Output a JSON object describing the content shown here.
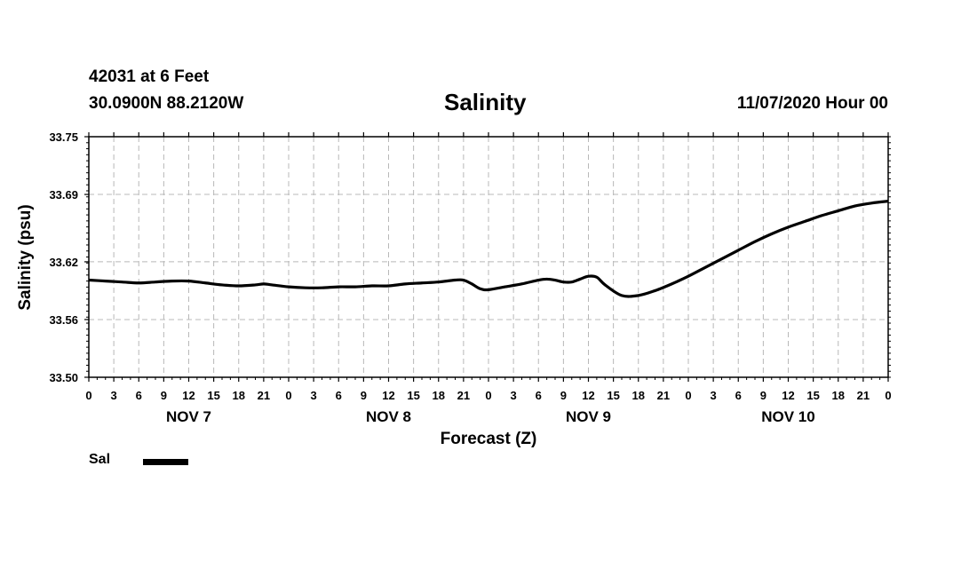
{
  "header": {
    "station": "42031 at 6 Feet",
    "coords": "30.0900N 88.2120W",
    "title": "Salinity",
    "timestamp": "11/07/2020 Hour 00"
  },
  "legend": {
    "label": "Sal",
    "color": "#000000"
  },
  "chart_data": {
    "type": "line",
    "title": "Salinity",
    "xlabel": "Forecast (Z)",
    "ylabel": "Salinity (psu)",
    "ylim": [
      33.5,
      33.75
    ],
    "yticks": [
      "33.50",
      "33.56",
      "33.62",
      "33.69",
      "33.75"
    ],
    "xlim": [
      0,
      96
    ],
    "x_unit": "forecast hour from 11/07/2020 00Z",
    "xtick_labels": [
      "0",
      "3",
      "6",
      "9",
      "12",
      "15",
      "18",
      "21",
      "0",
      "3",
      "6",
      "9",
      "12",
      "15",
      "18",
      "21",
      "0",
      "3",
      "6",
      "9",
      "12",
      "15",
      "18",
      "21",
      "0",
      "3",
      "6",
      "9",
      "12",
      "15",
      "18",
      "21",
      "0"
    ],
    "day_labels": [
      {
        "label": "NOV 7",
        "hour": 12
      },
      {
        "label": "NOV 8",
        "hour": 36
      },
      {
        "label": "NOV 9",
        "hour": 60
      },
      {
        "label": "NOV 10",
        "hour": 84
      }
    ],
    "grid": true,
    "legend_position": "bottom-left",
    "series": [
      {
        "name": "Sal",
        "color": "#000000",
        "x": [
          0,
          2,
          4,
          6,
          8,
          10,
          12,
          14,
          16,
          18,
          20,
          21,
          22,
          24,
          26,
          28,
          30,
          32,
          34,
          36,
          38,
          40,
          42,
          44,
          45,
          46,
          47,
          48,
          50,
          52,
          54,
          55,
          56,
          57,
          58,
          59,
          60,
          61,
          62,
          64,
          66,
          68,
          70,
          72,
          74,
          76,
          78,
          80,
          82,
          84,
          86,
          88,
          90,
          92,
          94,
          96
        ],
        "y": [
          33.601,
          33.6,
          33.599,
          33.598,
          33.599,
          33.6,
          33.6,
          33.598,
          33.596,
          33.595,
          33.596,
          33.597,
          33.596,
          33.594,
          33.593,
          33.593,
          33.594,
          33.594,
          33.595,
          33.595,
          33.597,
          33.598,
          33.599,
          33.601,
          33.601,
          33.597,
          33.592,
          33.591,
          33.594,
          33.597,
          33.601,
          33.602,
          33.601,
          33.599,
          33.599,
          33.602,
          33.605,
          33.604,
          33.596,
          33.585,
          33.585,
          33.59,
          33.597,
          33.605,
          33.614,
          33.623,
          33.632,
          33.641,
          33.649,
          33.656,
          33.662,
          33.668,
          33.673,
          33.678,
          33.681,
          33.683
        ]
      }
    ]
  }
}
